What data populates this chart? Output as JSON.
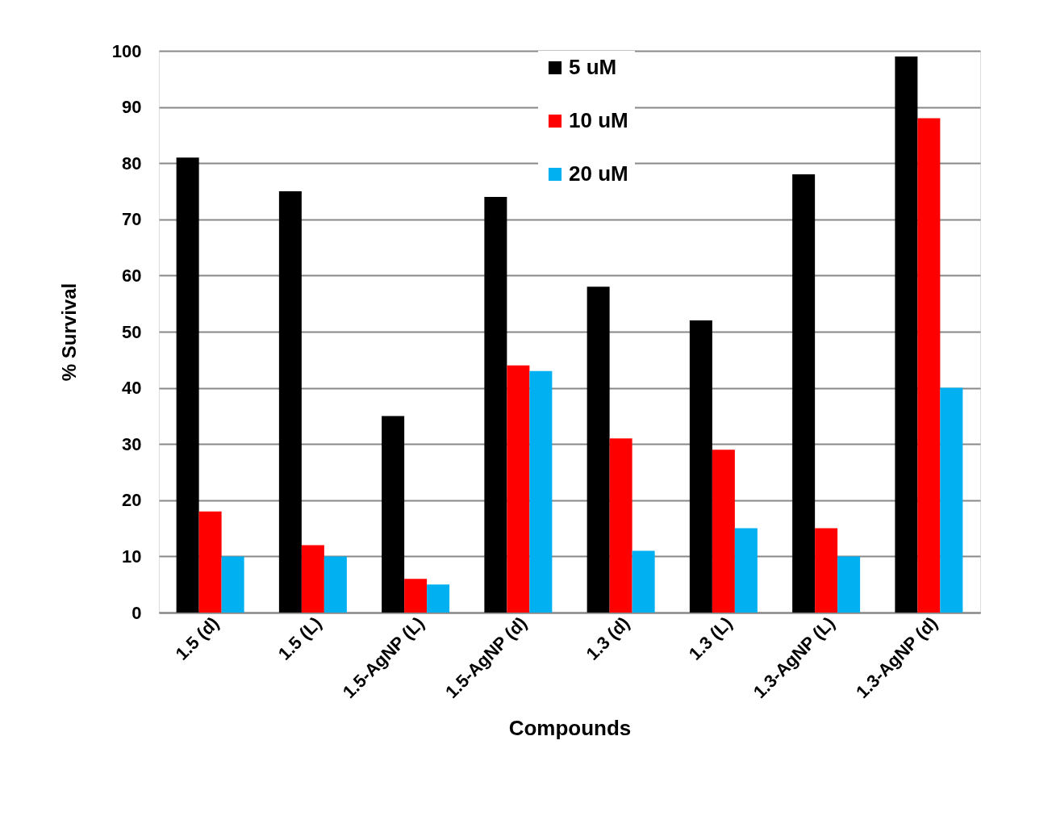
{
  "chart_data": {
    "type": "bar",
    "xlabel": "Compounds",
    "ylabel": "% Survival",
    "categories": [
      "1.5 (d)",
      "1.5 (L)",
      "1.5-AgNP (L)",
      "1.5-AgNP (d)",
      "1.3 (d)",
      "1.3 (L)",
      "1.3-AgNP (L)",
      "1.3-AgNP (d)"
    ],
    "series": [
      {
        "name": "5 uM",
        "color": "#000000",
        "values": [
          81,
          75,
          35,
          74,
          58,
          52,
          78,
          99
        ]
      },
      {
        "name": "10 uM",
        "color": "#ff0000",
        "values": [
          18,
          12,
          6,
          44,
          31,
          29,
          15,
          88
        ]
      },
      {
        "name": "20 uM",
        "color": "#00b0f0",
        "values": [
          10,
          10,
          5,
          43,
          11,
          15,
          10,
          40
        ]
      }
    ],
    "ylim": [
      0,
      100
    ],
    "yticks": [
      0,
      10,
      20,
      30,
      40,
      50,
      60,
      70,
      80,
      90,
      100
    ],
    "grid": "y",
    "legend": "top"
  }
}
